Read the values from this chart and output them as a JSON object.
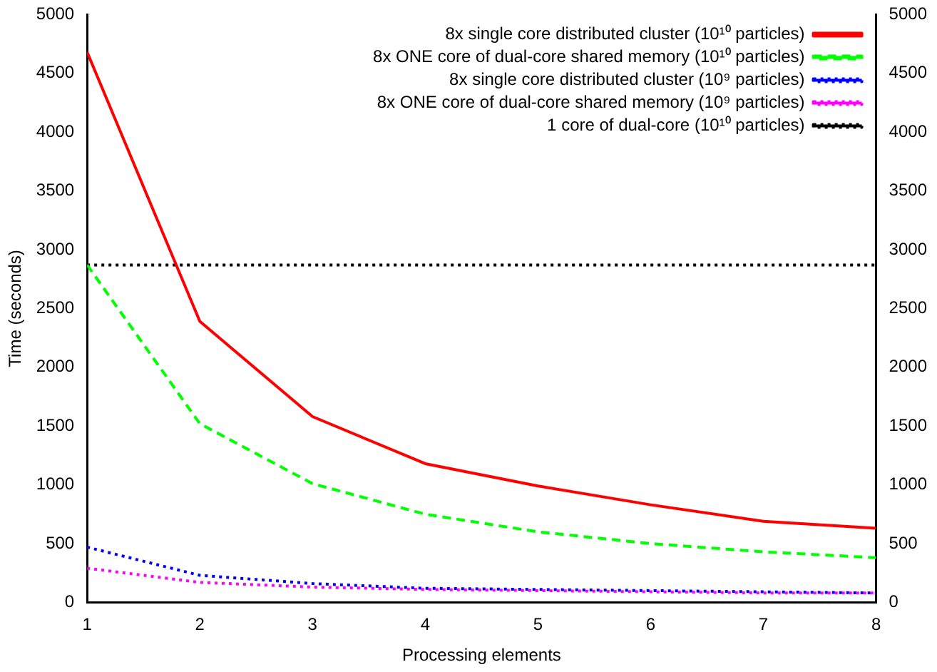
{
  "chart_data": {
    "type": "line",
    "xlabel": "Processing elements",
    "ylabel": "Time (seconds)",
    "x": [
      1,
      2,
      3,
      4,
      5,
      6,
      7,
      8
    ],
    "xlim": [
      1,
      8
    ],
    "xticks": [
      1,
      2,
      3,
      4,
      5,
      6,
      7,
      8
    ],
    "ylim": [
      0,
      5000
    ],
    "yticks": [
      0,
      500,
      1000,
      1500,
      2000,
      2500,
      3000,
      3500,
      4000,
      4500,
      5000
    ],
    "y2lim": [
      0,
      5000
    ],
    "y2ticks": [
      0,
      500,
      1000,
      1500,
      2000,
      2500,
      3000,
      3500,
      4000,
      4500,
      5000
    ],
    "grid": false,
    "legend": "top right",
    "marker": "none",
    "series": [
      {
        "name": "8x single core distributed cluster (10¹⁰ particles)",
        "color": "#ff0000",
        "line_style": "solid",
        "values": [
          4680,
          2390,
          1580,
          1180,
          990,
          830,
          690,
          630
        ]
      },
      {
        "name": "8x ONE core of dual-core shared memory (10¹⁰ particles)",
        "color": "#00ff00",
        "line_style": "dashed",
        "values": [
          2870,
          1520,
          1010,
          750,
          600,
          500,
          430,
          380
        ]
      },
      {
        "name": "8x single core distributed cluster (10⁹ particles)",
        "color": "#0000ff",
        "line_style": "dotted",
        "values": [
          470,
          230,
          160,
          120,
          110,
          100,
          90,
          80
        ]
      },
      {
        "name": "8x ONE core of dual-core shared memory (10⁹ particles)",
        "color": "#ff00ff",
        "line_style": "dotted",
        "values": [
          290,
          170,
          130,
          110,
          100,
          90,
          80,
          80
        ]
      },
      {
        "name": "1 core of dual-core (10¹⁰ particles)",
        "color": "#000000",
        "line_style": "dotted",
        "x": [
          1,
          8
        ],
        "values": [
          2870,
          2870
        ]
      }
    ]
  }
}
